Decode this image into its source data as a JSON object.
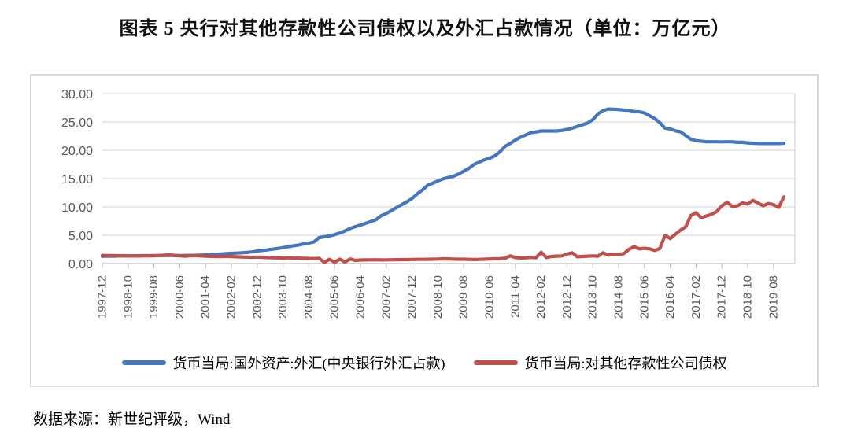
{
  "title": "图表 5  央行对其他存款性公司债权以及外汇占款情况（单位：万亿元）",
  "source": "数据来源：新世纪评级，Wind",
  "chart_data": {
    "type": "line",
    "title": "央行对其他存款性公司债权以及外汇占款情况",
    "unit": "万亿元",
    "x_start": "1997-12",
    "x_end": "2019-12",
    "x_step_months": 2,
    "x_ticks_every_months": 10,
    "x_tick_labels": [
      "1997-12",
      "1998-10",
      "1999-08",
      "2000-06",
      "2001-04",
      "2002-02",
      "2002-12",
      "2003-10",
      "2004-08",
      "2005-06",
      "2006-04",
      "2007-02",
      "2007-12",
      "2008-10",
      "2009-08",
      "2010-06",
      "2011-04",
      "2012-02",
      "2012-12",
      "2013-10",
      "2014-08",
      "2015-06",
      "2016-04",
      "2017-02",
      "2017-12",
      "2018-10",
      "2019-08"
    ],
    "y_ticks": [
      0,
      5,
      10,
      15,
      20,
      25,
      30
    ],
    "y_tick_labels": [
      "0.00",
      "5.00",
      "10.00",
      "15.00",
      "20.00",
      "25.00",
      "30.00"
    ],
    "ylim": [
      0,
      30
    ],
    "grid": true,
    "legend_position": "bottom",
    "series": [
      {
        "name": "货币当局:国外资产:外汇(中央银行外汇占款)",
        "color": "#4576BE",
        "values": [
          1.28,
          1.3,
          1.31,
          1.33,
          1.34,
          1.35,
          1.37,
          1.38,
          1.39,
          1.39,
          1.4,
          1.4,
          1.41,
          1.42,
          1.42,
          1.42,
          1.43,
          1.44,
          1.45,
          1.47,
          1.51,
          1.56,
          1.62,
          1.68,
          1.77,
          1.8,
          1.85,
          1.9,
          1.97,
          2.05,
          2.21,
          2.32,
          2.42,
          2.54,
          2.66,
          2.8,
          2.98,
          3.14,
          3.28,
          3.46,
          3.62,
          3.84,
          4.59,
          4.72,
          4.88,
          5.1,
          5.41,
          5.75,
          6.21,
          6.51,
          6.79,
          7.1,
          7.42,
          7.74,
          8.44,
          8.85,
          9.35,
          9.9,
          10.4,
          10.9,
          11.5,
          12.3,
          13.0,
          13.8,
          14.2,
          14.6,
          14.96,
          15.2,
          15.4,
          15.8,
          16.3,
          16.8,
          17.5,
          17.9,
          18.3,
          18.6,
          19.0,
          19.7,
          20.7,
          21.2,
          21.8,
          22.3,
          22.7,
          23.1,
          23.24,
          23.4,
          23.4,
          23.4,
          23.4,
          23.5,
          23.67,
          23.9,
          24.2,
          24.5,
          24.8,
          25.4,
          26.43,
          27.0,
          27.28,
          27.25,
          27.2,
          27.1,
          27.07,
          26.8,
          26.8,
          26.6,
          26.1,
          25.6,
          24.85,
          23.9,
          23.78,
          23.43,
          23.25,
          22.6,
          21.94,
          21.68,
          21.6,
          21.5,
          21.5,
          21.5,
          21.48,
          21.5,
          21.5,
          21.4,
          21.4,
          21.3,
          21.25,
          21.2,
          21.2,
          21.2,
          21.2,
          21.2,
          21.23
        ]
      },
      {
        "name": "货币当局:对其他存款性公司债权",
        "color": "#C0504D",
        "values": [
          1.44,
          1.42,
          1.4,
          1.38,
          1.37,
          1.35,
          1.34,
          1.35,
          1.36,
          1.37,
          1.38,
          1.42,
          1.48,
          1.52,
          1.45,
          1.36,
          1.3,
          1.36,
          1.4,
          1.35,
          1.3,
          1.27,
          1.24,
          1.22,
          1.26,
          1.24,
          1.2,
          1.16,
          1.13,
          1.1,
          1.14,
          1.1,
          1.05,
          1.02,
          0.99,
          0.96,
          1.02,
          0.98,
          0.94,
          0.91,
          0.89,
          0.87,
          0.93,
          0.2,
          0.75,
          0.22,
          0.78,
          0.28,
          0.8,
          0.55,
          0.62,
          0.64,
          0.65,
          0.66,
          0.64,
          0.65,
          0.66,
          0.68,
          0.69,
          0.7,
          0.72,
          0.73,
          0.74,
          0.75,
          0.76,
          0.79,
          0.84,
          0.82,
          0.79,
          0.77,
          0.76,
          0.74,
          0.71,
          0.74,
          0.77,
          0.8,
          0.83,
          0.86,
          0.95,
          1.35,
          1.05,
          0.98,
          1.0,
          1.1,
          1.02,
          2.0,
          1.05,
          1.25,
          1.3,
          1.35,
          1.67,
          1.9,
          1.2,
          1.25,
          1.3,
          1.35,
          1.31,
          1.9,
          1.5,
          1.55,
          1.63,
          1.75,
          2.5,
          3.0,
          2.6,
          2.7,
          2.6,
          2.3,
          2.66,
          5.0,
          4.4,
          5.2,
          5.9,
          6.5,
          8.47,
          8.97,
          8.1,
          8.4,
          8.7,
          9.2,
          10.2,
          10.8,
          10.1,
          10.2,
          10.7,
          10.5,
          11.15,
          10.7,
          10.2,
          10.6,
          10.4,
          9.9,
          11.77
        ]
      }
    ]
  }
}
